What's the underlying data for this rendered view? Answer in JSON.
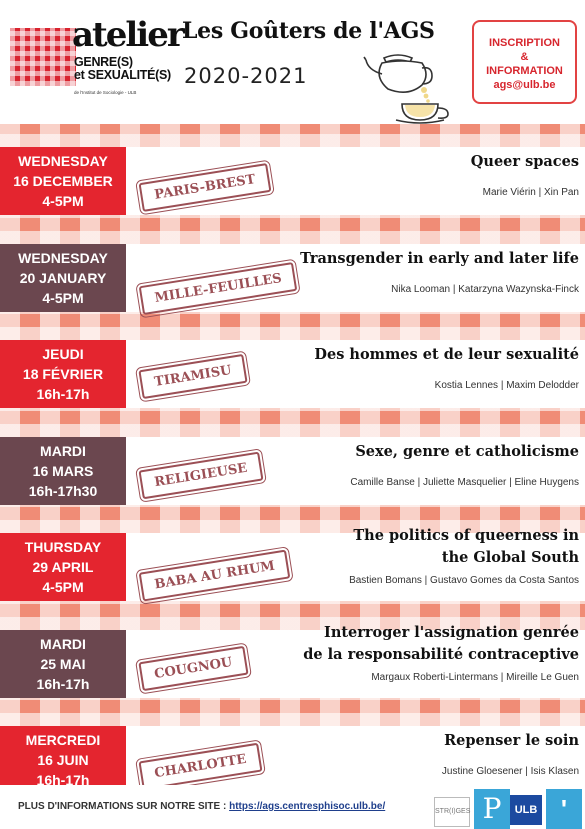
{
  "header": {
    "logo": {
      "word": "atelier",
      "line1": "GENRE(S)",
      "line2": "et SEXUALITÉ(S)",
      "tiny": "de l'Institut de Sociologie - ULB"
    },
    "title": "Les Goûters de l'AGS",
    "year": "2020-2021",
    "info": {
      "line1": "INSCRIPTION",
      "line2": "&",
      "line3": "INFORMATION",
      "line4": "ags@ulb.be"
    }
  },
  "colors": {
    "red": "#e4252f",
    "plum": "#6b474f",
    "stripe": "#f08c76",
    "stamp": "#9b4f55"
  },
  "events": [
    {
      "date": [
        "WEDNESDAY",
        "16 DECEMBER",
        "4-5PM"
      ],
      "color": "#e4252f",
      "pastry": "PARIS-BREST",
      "title": [
        "Queer spaces"
      ],
      "speakers": "Marie Viérin | Xin Pan"
    },
    {
      "date": [
        "WEDNESDAY",
        "20 JANUARY",
        "4-5PM"
      ],
      "color": "#6b474f",
      "pastry": "MILLE-FEUILLES",
      "title": [
        "Transgender in early and later life"
      ],
      "speakers": "Nika Looman | Katarzyna  Wazynska-Finck"
    },
    {
      "date": [
        "JEUDI",
        "18 FÉVRIER",
        "16h-17h"
      ],
      "color": "#e4252f",
      "pastry": "TIRAMISU",
      "title": [
        "Des hommes et de leur sexualité"
      ],
      "speakers": "Kostia Lennes | Maxim Delodder"
    },
    {
      "date": [
        "MARDI",
        "16 MARS",
        "16h-17h30"
      ],
      "color": "#6b474f",
      "pastry": "RELIGIEUSE",
      "title": [
        "Sexe, genre et catholicisme"
      ],
      "speakers": "Camille Banse | Juliette Masquelier | Eline Huygens"
    },
    {
      "date": [
        "THURSDAY",
        "29 APRIL",
        "4-5PM"
      ],
      "color": "#e4252f",
      "pastry": "BABA AU RHUM",
      "title": [
        "The politics of queerness in",
        "the Global South"
      ],
      "speakers": "Bastien Bomans | Gustavo Gomes da Costa Santos"
    },
    {
      "date": [
        "MARDI",
        "25 MAI",
        "16h-17h"
      ],
      "color": "#6b474f",
      "pastry": "COUGNOU",
      "title": [
        "Interroger l'assignation genrée",
        "de la responsabilité contraceptive"
      ],
      "speakers": "Margaux Roberti-Lintermans | Mireille Le Guen"
    },
    {
      "date": [
        "MERCREDI",
        "16 JUIN",
        "16h-17h"
      ],
      "color": "#e4252f",
      "pastry": "CHARLOTTE",
      "title": [
        "Repenser le soin"
      ],
      "speakers": "Justine Gloesener | Isis Klasen"
    }
  ],
  "footer": {
    "text": "PLUS D'INFORMATIONS SUR NOTRE SITE : ",
    "link": "https://ags.centresphisoc.ulb.be/",
    "logos": [
      "STR(I)GES",
      "ULB"
    ]
  }
}
